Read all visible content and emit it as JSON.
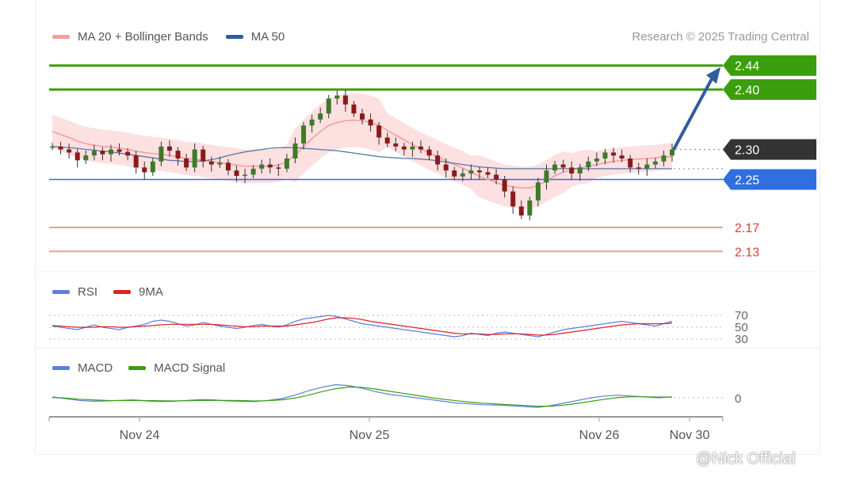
{
  "chart_data": {
    "type": "candlestick",
    "credit": "Research © 2025 Trading Central",
    "legend": [
      {
        "name": "MA 20 + Bollinger Bands",
        "color": "#f4a0a0"
      },
      {
        "name": "MA 50",
        "color": "#2f5d9e"
      }
    ],
    "x_ticks": [
      "Nov 24",
      "Nov 25",
      "Nov 26",
      "Nov 30"
    ],
    "price_levels": [
      {
        "value": "2.44",
        "kind": "target",
        "color": "#3b9e0c"
      },
      {
        "value": "2.40",
        "kind": "target",
        "color": "#3b9e0c"
      },
      {
        "value": "2.30",
        "kind": "current",
        "color": "#333333"
      },
      {
        "value": "2.25",
        "kind": "support",
        "color": "#2f6fe0"
      },
      {
        "value": "2.17",
        "kind": "support",
        "color": "#e43a3a"
      },
      {
        "value": "2.13",
        "kind": "support",
        "color": "#e43a3a"
      }
    ],
    "price_range": [
      2.1,
      2.47
    ],
    "price_series": [
      2.305,
      2.3,
      2.295,
      2.282,
      2.29,
      2.298,
      2.292,
      2.3,
      2.296,
      2.29,
      2.27,
      2.262,
      2.28,
      2.305,
      2.298,
      2.285,
      2.27,
      2.3,
      2.28,
      2.275,
      2.278,
      2.265,
      2.256,
      2.258,
      2.268,
      2.275,
      2.27,
      2.268,
      2.285,
      2.31,
      2.34,
      2.35,
      2.36,
      2.385,
      2.39,
      2.375,
      2.36,
      2.35,
      2.34,
      2.32,
      2.31,
      2.305,
      2.3,
      2.305,
      2.3,
      2.29,
      2.275,
      2.265,
      2.255,
      2.26,
      2.265,
      2.262,
      2.258,
      2.25,
      2.23,
      2.205,
      2.19,
      2.215,
      2.245,
      2.265,
      2.275,
      2.27,
      2.26,
      2.27,
      2.28,
      2.285,
      2.295,
      2.29,
      2.285,
      2.27,
      2.268,
      2.275,
      2.28,
      2.29,
      2.3
    ],
    "ma20_series": [
      2.33,
      2.325,
      2.32,
      2.314,
      2.31,
      2.307,
      2.305,
      2.304,
      2.302,
      2.3,
      2.297,
      2.295,
      2.293,
      2.292,
      2.29,
      2.288,
      2.285,
      2.284,
      2.282,
      2.28,
      2.278,
      2.276,
      2.274,
      2.272,
      2.272,
      2.272,
      2.272,
      2.274,
      2.28,
      2.29,
      2.305,
      2.318,
      2.33,
      2.34,
      2.345,
      2.348,
      2.349,
      2.348,
      2.345,
      2.34,
      2.332,
      2.324,
      2.316,
      2.308,
      2.301,
      2.294,
      2.288,
      2.281,
      2.275,
      2.269,
      2.262,
      2.255,
      2.25,
      2.245,
      2.24,
      2.238,
      2.236,
      2.236,
      2.24,
      2.248,
      2.256,
      2.262,
      2.266,
      2.27,
      2.272,
      2.275,
      2.278,
      2.28,
      2.282,
      2.283,
      2.284,
      2.285,
      2.286,
      2.288,
      2.288
    ],
    "ma50_series": [
      2.305,
      2.304,
      2.303,
      2.302,
      2.3,
      2.299,
      2.297,
      2.296,
      2.294,
      2.292,
      2.29,
      2.288,
      2.286,
      2.284,
      2.282,
      2.281,
      2.28,
      2.28,
      2.281,
      2.283,
      2.286,
      2.29,
      2.293,
      2.296,
      2.298,
      2.3,
      2.302,
      2.303,
      2.303,
      2.303,
      2.302,
      2.301,
      2.3,
      2.299,
      2.298,
      2.296,
      2.294,
      2.292,
      2.29,
      2.288,
      2.287,
      2.286,
      2.285,
      2.285,
      2.284,
      2.283,
      2.281,
      2.279,
      2.277,
      2.275,
      2.273,
      2.271,
      2.27,
      2.269,
      2.268,
      2.268,
      2.268,
      2.268,
      2.268,
      2.268,
      2.268,
      2.268,
      2.268,
      2.268,
      2.268,
      2.268,
      2.268,
      2.268,
      2.268,
      2.268,
      2.268,
      2.268,
      2.268,
      2.268,
      2.268
    ],
    "rsi_panel": {
      "legend": [
        {
          "name": "RSI",
          "color": "#5b7fe0"
        },
        {
          "name": "9MA",
          "color": "#e02020"
        }
      ],
      "levels": [
        "70",
        "50",
        "30"
      ],
      "range": [
        20,
        80
      ],
      "rsi": [
        52,
        50,
        48,
        46,
        50,
        54,
        50,
        48,
        46,
        50,
        52,
        55,
        60,
        62,
        60,
        56,
        52,
        54,
        58,
        55,
        52,
        50,
        48,
        50,
        53,
        55,
        52,
        50,
        54,
        60,
        64,
        66,
        68,
        70,
        68,
        64,
        60,
        56,
        54,
        52,
        50,
        48,
        46,
        44,
        42,
        40,
        38,
        36,
        34,
        36,
        40,
        38,
        36,
        40,
        42,
        40,
        38,
        36,
        34,
        38,
        42,
        46,
        48,
        50,
        52,
        54,
        56,
        58,
        60,
        58,
        56,
        54,
        52,
        56,
        60
      ],
      "ma9": [
        53,
        52,
        51,
        50,
        50,
        50,
        51,
        51,
        50,
        50,
        51,
        52,
        53,
        54,
        55,
        55,
        55,
        55,
        55,
        55,
        54,
        53,
        52,
        51,
        51,
        52,
        52,
        52,
        52,
        54,
        56,
        58,
        61,
        64,
        66,
        66,
        65,
        63,
        60,
        58,
        56,
        54,
        52,
        50,
        48,
        46,
        44,
        42,
        40,
        39,
        39,
        39,
        38,
        38,
        39,
        39,
        39,
        38,
        37,
        37,
        38,
        40,
        42,
        44,
        46,
        48,
        50,
        52,
        54,
        55,
        56,
        56,
        56,
        56,
        57
      ]
    },
    "macd_panel": {
      "legend": [
        {
          "name": "MACD",
          "color": "#5b7fe0"
        },
        {
          "name": "MACD Signal",
          "color": "#3b9e0c"
        }
      ],
      "levels": [
        "0"
      ],
      "range": [
        -1,
        1
      ],
      "macd": [
        0.05,
        -0.05,
        -0.15,
        -0.2,
        -0.18,
        -0.15,
        -0.12,
        -0.18,
        -0.22,
        -0.2,
        -0.15,
        -0.1,
        -0.12,
        -0.18,
        -0.2,
        -0.22,
        -0.15,
        -0.05,
        0.15,
        0.4,
        0.6,
        0.75,
        0.7,
        0.55,
        0.35,
        0.2,
        0.1,
        0.0,
        -0.1,
        -0.2,
        -0.3,
        -0.35,
        -0.4,
        -0.42,
        -0.45,
        -0.5,
        -0.55,
        -0.45,
        -0.3,
        -0.15,
        0.0,
        0.1,
        0.15,
        0.1,
        0.05,
        0.0,
        0.05
      ],
      "signal": [
        0.02,
        -0.02,
        -0.08,
        -0.12,
        -0.15,
        -0.16,
        -0.16,
        -0.16,
        -0.17,
        -0.18,
        -0.17,
        -0.16,
        -0.15,
        -0.15,
        -0.16,
        -0.18,
        -0.17,
        -0.12,
        -0.02,
        0.15,
        0.35,
        0.52,
        0.62,
        0.6,
        0.5,
        0.38,
        0.26,
        0.14,
        0.02,
        -0.08,
        -0.17,
        -0.25,
        -0.31,
        -0.36,
        -0.4,
        -0.44,
        -0.48,
        -0.48,
        -0.42,
        -0.32,
        -0.2,
        -0.08,
        0.02,
        0.06,
        0.06,
        0.04,
        0.04
      ]
    }
  },
  "watermark": "@Nick Official"
}
